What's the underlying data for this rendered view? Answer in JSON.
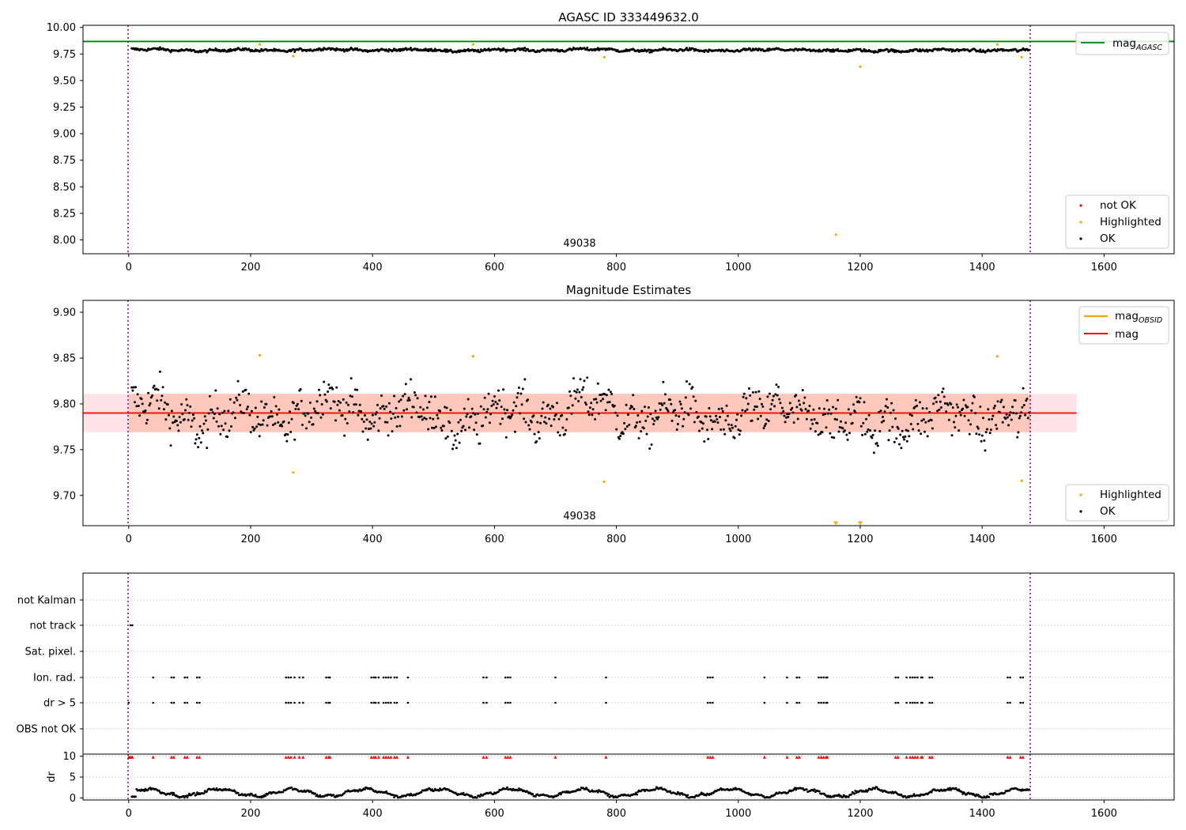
{
  "chart_data": [
    {
      "type": "scatter",
      "title": "AGASC ID 333449632.0",
      "xlabel": "",
      "ylabel": "",
      "xlim": [
        -75,
        1715
      ],
      "ylim": [
        7.87,
        10.02
      ],
      "x_ticks": [
        "0",
        "200",
        "400",
        "600",
        "800",
        "1000",
        "1200",
        "1400",
        "1600"
      ],
      "y_ticks": [
        "8.00",
        "8.25",
        "8.50",
        "8.75",
        "9.00",
        "9.25",
        "9.50",
        "9.75",
        "10.00"
      ],
      "obsid_label": "49038",
      "reference_lines": {
        "mag_agasc": 9.868,
        "obs_start": 0,
        "obs_end": 1480
      },
      "legend_lines": [
        "mag_AGASC"
      ],
      "legend_points": [
        "not OK",
        "Highlighted",
        "OK"
      ],
      "series": [
        {
          "name": "OK",
          "color": "#000000",
          "note": "dense time series ~9.76-9.83 from t=5 to t=1478"
        },
        {
          "name": "Highlighted",
          "color": "#ffa500",
          "points": [
            [
              215,
              9.84
            ],
            [
              270,
              9.73
            ],
            [
              565,
              9.84
            ],
            [
              780,
              9.72
            ],
            [
              1160,
              8.05
            ],
            [
              1200,
              9.63
            ],
            [
              1425,
              9.84
            ],
            [
              1465,
              9.72
            ]
          ]
        },
        {
          "name": "not OK",
          "color": "#ff0000",
          "points": []
        }
      ]
    },
    {
      "type": "scatter",
      "title": "Magnitude Estimates",
      "xlabel": "",
      "ylabel": "",
      "xlim": [
        -75,
        1715
      ],
      "ylim": [
        9.667,
        9.913
      ],
      "x_ticks": [
        "0",
        "200",
        "400",
        "600",
        "800",
        "1000",
        "1200",
        "1400",
        "1600"
      ],
      "y_ticks": [
        "9.70",
        "9.75",
        "9.80",
        "9.85",
        "9.90"
      ],
      "obsid_label": "49038",
      "mag_obsid": 9.79,
      "mag": 9.79,
      "band": [
        9.769,
        9.811
      ],
      "band_xrange": [
        -75,
        1555
      ],
      "legend_lines": [
        "mag_OBSID",
        "mag"
      ],
      "legend_points": [
        "Highlighted",
        "OK"
      ],
      "series": [
        {
          "name": "OK",
          "color": "#000000",
          "note": "scatter 9.73-9.85 around 9.79"
        },
        {
          "name": "Highlighted",
          "color": "#ffa500",
          "points": [
            [
              215,
              9.853
            ],
            [
              270,
              9.725
            ],
            [
              565,
              9.852
            ],
            [
              780,
              9.715
            ],
            [
              1425,
              9.852
            ],
            [
              1465,
              9.716
            ]
          ]
        },
        {
          "name": "Highlighted (below range)",
          "color": "#ffa500",
          "points": [
            [
              1160,
              9.669
            ],
            [
              1200,
              9.669
            ]
          ]
        }
      ]
    },
    {
      "type": "scatter",
      "title": "",
      "xlim": [
        -75,
        1715
      ],
      "flag_rows": [
        "not Kalman",
        "not track",
        "Sat. pixel.",
        "Ion. rad.",
        "dr > 5",
        "OBS not OK"
      ],
      "flag_events": {
        "not track": [
          3,
          6
        ],
        "ion_rad": [
          40,
          70,
          74,
          92,
          96,
          112,
          116,
          258,
          262,
          266,
          272,
          280,
          286,
          324,
          328,
          330,
          398,
          402,
          405,
          410,
          418,
          422,
          426,
          430,
          436,
          440,
          458,
          582,
          587,
          618,
          622,
          626,
          700,
          783,
          950,
          954,
          958,
          1043,
          1080,
          1096,
          1100,
          1132,
          1136,
          1140,
          1144,
          1146,
          1258,
          1262,
          1276,
          1282,
          1286,
          1290,
          1294,
          1300,
          1302,
          1314,
          1318,
          1442,
          1446,
          1463,
          1467
        ],
        "dr_gt_5": [
          0,
          40,
          70,
          74,
          92,
          96,
          112,
          116,
          258,
          262,
          266,
          272,
          280,
          286,
          324,
          328,
          330,
          398,
          402,
          405,
          410,
          418,
          422,
          426,
          430,
          436,
          440,
          458,
          582,
          587,
          618,
          622,
          626,
          700,
          783,
          950,
          954,
          958,
          1043,
          1080,
          1096,
          1100,
          1132,
          1136,
          1140,
          1144,
          1146,
          1258,
          1262,
          1276,
          1282,
          1286,
          1290,
          1294,
          1300,
          1302,
          1314,
          1318,
          1442,
          1446,
          1463,
          1467
        ]
      }
    },
    {
      "type": "scatter",
      "title": "",
      "ylabel": "dr",
      "xlim": [
        -75,
        1715
      ],
      "ylim": [
        -0.5,
        10.5
      ],
      "x_ticks": [
        "0",
        "200",
        "400",
        "600",
        "800",
        "1000",
        "1200",
        "1400",
        "1600"
      ],
      "y_ticks": [
        "0",
        "5",
        "10"
      ],
      "dr_high_value": 9.8,
      "note": "dr values 0-2.5 in wavy pattern, red markers at dr≈10 for flagged times"
    }
  ]
}
